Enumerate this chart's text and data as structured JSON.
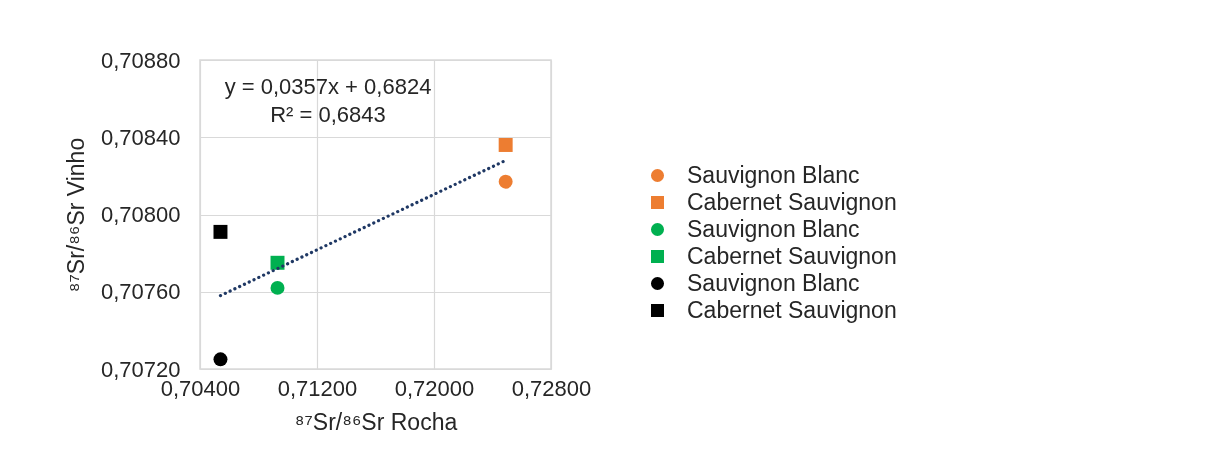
{
  "chart_data": {
    "type": "scatter",
    "xlabel": "⁸⁷Sr/⁸⁶Sr Rocha",
    "ylabel": "⁸⁷Sr/⁸⁶Sr Vinho",
    "annotations": [
      "y = 0,0357x + 0,6824",
      "R² = 0,6843"
    ],
    "xlim": [
      0.704,
      0.728
    ],
    "xticks": [
      {
        "value": 0.704,
        "label": "0,70400"
      },
      {
        "value": 0.712,
        "label": "0,71200"
      },
      {
        "value": 0.72,
        "label": "0,72000"
      },
      {
        "value": 0.728,
        "label": "0,72800"
      }
    ],
    "ylim": [
      0.7072,
      0.7088
    ],
    "yticks": [
      {
        "value": 0.7072,
        "label": "0,70720"
      },
      {
        "value": 0.7076,
        "label": "0,70760"
      },
      {
        "value": 0.708,
        "label": "0,70800"
      },
      {
        "value": 0.7084,
        "label": "0,70840"
      },
      {
        "value": 0.7088,
        "label": "0,70880"
      }
    ],
    "grid": true,
    "legend": "right",
    "series": [
      {
        "name": "Sauvignon Blanc",
        "color": "#ed7d31",
        "marker": "circle",
        "x": [
          0.7249
        ],
        "values": [
          0.70817
        ]
      },
      {
        "name": "Cabernet Sauvignon",
        "color": "#ed7d31",
        "marker": "square",
        "x": [
          0.7249
        ],
        "values": [
          0.70836
        ]
      },
      {
        "name": "Sauvignon Blanc",
        "color": "#00b050",
        "marker": "circle",
        "x": [
          0.7093
        ],
        "values": [
          0.70762
        ]
      },
      {
        "name": "Cabernet Sauvignon",
        "color": "#00b050",
        "marker": "square",
        "x": [
          0.7093
        ],
        "values": [
          0.70775
        ]
      },
      {
        "name": "Sauvignon Blanc",
        "color": "#000000",
        "marker": "circle",
        "x": [
          0.7054
        ],
        "values": [
          0.70725
        ]
      },
      {
        "name": "Cabernet Sauvignon",
        "color": "#000000",
        "marker": "square",
        "x": [
          0.7054
        ],
        "values": [
          0.70791
        ]
      },
      {
        "type": "line",
        "color": "#1f3864",
        "line_style": "dotted",
        "marker": "none",
        "x": [
          0.7054,
          0.7249
        ],
        "values": [
          0.70758,
          0.70828
        ]
      }
    ]
  }
}
